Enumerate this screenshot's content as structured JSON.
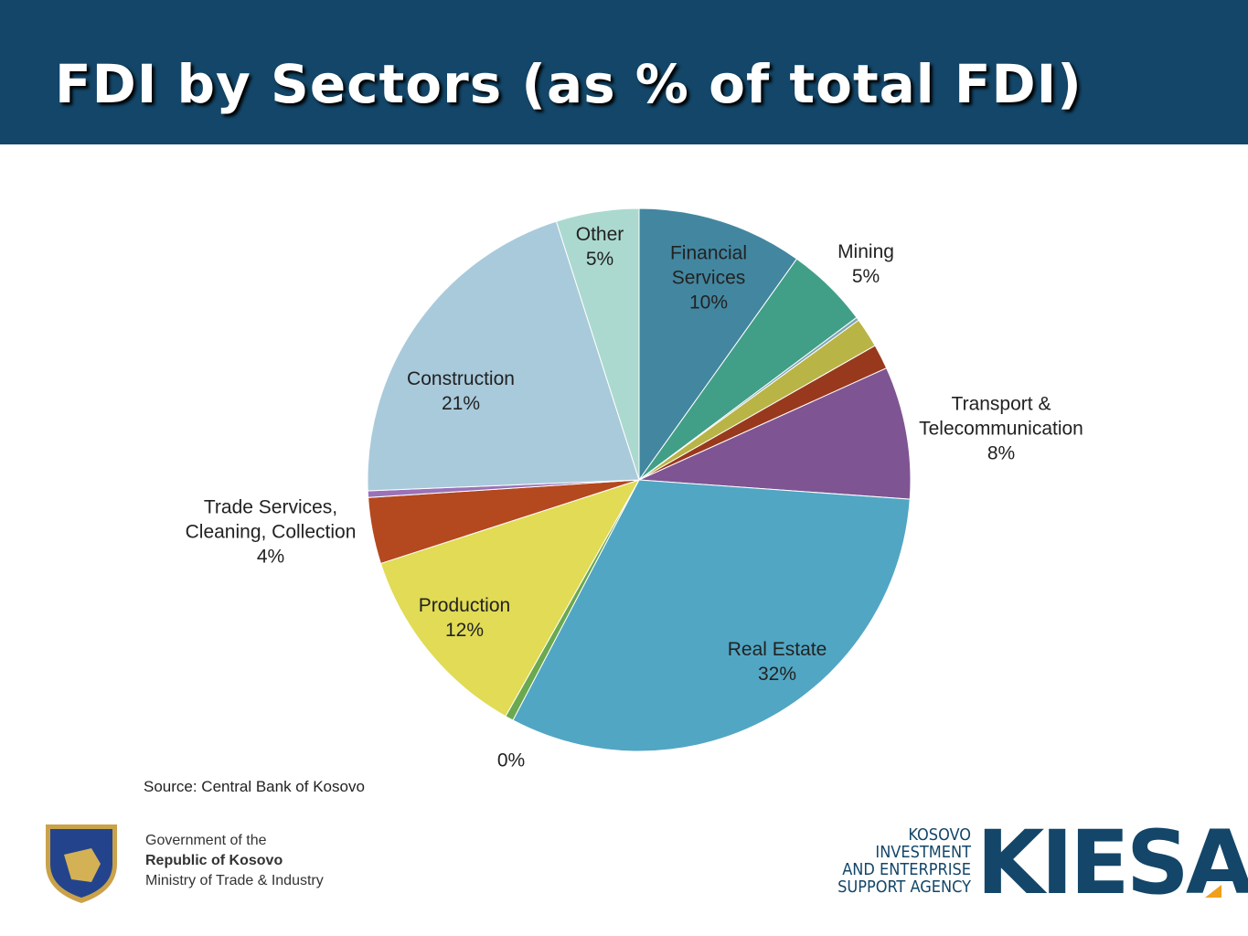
{
  "header": {
    "title": "FDI by Sectors (as % of total FDI)"
  },
  "chart_data": {
    "type": "pie",
    "categories": [
      "Financial Services",
      "Mining",
      null,
      null,
      null,
      "Transport & Telecommunication",
      "Real Estate",
      null,
      "Production",
      "Trade Services, Cleaning, Collection",
      null,
      "Construction",
      "Other"
    ],
    "values": [
      10,
      5,
      0.2,
      1.8,
      1.5,
      8,
      32,
      0.5,
      12,
      4,
      0.4,
      21,
      5
    ],
    "value_labels": [
      "10%",
      "5%",
      null,
      null,
      null,
      "8%",
      "32%",
      "0%",
      "12%",
      "4%",
      null,
      "21%",
      "5%"
    ],
    "colors": [
      "#4386a0",
      "#419f87",
      "#7fa6b6",
      "#b9b446",
      "#98391d",
      "#7f5493",
      "#51a6c3",
      "#6aa94f",
      "#e1db55",
      "#b4481f",
      "#9a72b8",
      "#a9cadb",
      "#abd9cf"
    ]
  },
  "source": "Source: Central Bank of Kosovo",
  "footer": {
    "gov_line1": "Government of the",
    "gov_line2": "Republic of Kosovo",
    "gov_line3": "Ministry of Trade & Industry",
    "logo_lines": [
      "KOSOVO",
      "INVESTMENT",
      "AND ENTERPRISE",
      "SUPPORT AGENCY"
    ],
    "logo_mark": "KIESA"
  }
}
